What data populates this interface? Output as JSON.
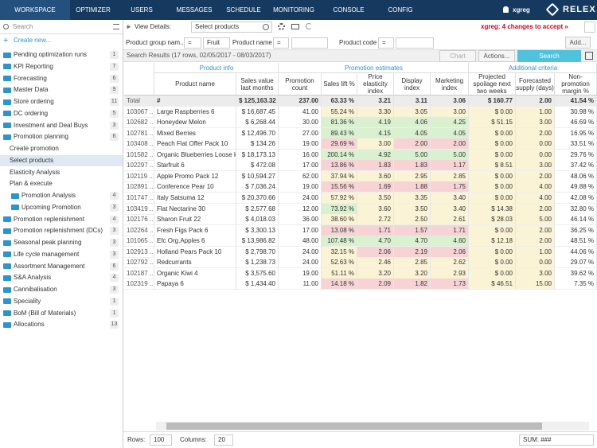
{
  "nav": {
    "tabs": [
      "WORKSPACE",
      "OPTIMIZER",
      "USERS",
      "MESSAGES",
      "SCHEDULE",
      "MONITORING",
      "CONSOLE",
      "CONFIG"
    ],
    "user": "xgreg",
    "logo": "RELEX"
  },
  "sidebar": {
    "search": "Search",
    "create": "Create new...",
    "items": [
      {
        "label": "Pending optimization runs",
        "count": "1"
      },
      {
        "label": "KPI Reporting",
        "count": "7"
      },
      {
        "label": "Forecasting",
        "count": "6"
      },
      {
        "label": "Master Data",
        "count": "9"
      },
      {
        "label": "Store ordering",
        "count": "11"
      },
      {
        "label": "DC ordering",
        "count": "5"
      },
      {
        "label": "Investment and Deal Buys",
        "count": "3"
      },
      {
        "label": "Promotion planning",
        "count": "6",
        "children": [
          {
            "label": "Create promotion"
          },
          {
            "label": "Select products",
            "selected": true
          },
          {
            "label": "Elasticity Analysis"
          },
          {
            "label": "Plan & execute",
            "children": [
              {
                "label": "Promotion Analysis",
                "count": "4"
              },
              {
                "label": "Upcoming Promotion",
                "count": "3"
              }
            ]
          }
        ]
      },
      {
        "label": "Promotion replenishment",
        "count": "4"
      },
      {
        "label": "Promotion replenishment (DCs)",
        "count": "3"
      },
      {
        "label": "Seasonal peak planning",
        "count": "3"
      },
      {
        "label": "Life cycle management",
        "count": "3"
      },
      {
        "label": "Assortment Management",
        "count": "6"
      },
      {
        "label": "S&A Analysis",
        "count": "4"
      },
      {
        "label": "Cannibalisation",
        "count": "3"
      },
      {
        "label": "Speciality",
        "count": "1"
      },
      {
        "label": "BoM (Bill of Materials)",
        "count": "1"
      },
      {
        "label": "Allocations",
        "count": "13"
      }
    ]
  },
  "toolbar": {
    "view_label": "View Details:",
    "view_value": "Select products",
    "notice": "xgreg: 4 changes to accept »"
  },
  "filters": {
    "items": [
      {
        "label": "Product group nam...",
        "op": "=",
        "value": "Fruit"
      },
      {
        "label": "Product name",
        "op": "="
      },
      {
        "label": "Product code",
        "op": "="
      }
    ],
    "add": "Add..."
  },
  "results": {
    "summary": "Search Results (17 rows, 02/05/2017 - 08/03/2017)",
    "chart": "Chart",
    "actions": "Actions...",
    "search": "Search"
  },
  "table": {
    "groups": [
      {
        "label": "Product info",
        "span": 2
      },
      {
        "label": "Promotion estimates",
        "span": 5
      },
      {
        "label": "Additional criteria",
        "span": 3
      }
    ],
    "columns": [
      "Product name",
      "Sales value last months",
      "Promotion count",
      "Sales lift %",
      "Price elasticity index",
      "Display index",
      "Marketing index",
      "Projected spoilage next two weeks",
      "Forecasted supply (days)",
      "Non-promotion margin %"
    ],
    "shade_colors": {
      "g": "#d9f1d0",
      "y": "#fbf3d6",
      "r": "#f7d3d6"
    },
    "total": {
      "id": "Total",
      "cells": [
        "#",
        "$ 125,163.32",
        "237.00",
        "63.33 %",
        "3.21",
        "3.11",
        "3.06",
        "$ 160.77",
        "2.00",
        "41.54 %"
      ]
    },
    "rows": [
      {
        "id": "103067 ...",
        "cells": [
          "Large Raspberries 6",
          "$ 16,687.45",
          "41.00",
          "55.24 %",
          "3.30",
          "3.05",
          "3.00",
          "$ 0.00",
          "1.00",
          "30.98 %"
        ],
        "shades": "yyyy"
      },
      {
        "id": "102682 ...",
        "cells": [
          "Honeydew Melon",
          "$ 6,268.44",
          "30.00",
          "81.36 %",
          "4.19",
          "4.06",
          "4.25",
          "$ 51.15",
          "3.00",
          "46.69 %"
        ],
        "shades": "gggg"
      },
      {
        "id": "102781 ...",
        "cells": [
          "Mixed Berries",
          "$ 12,496.70",
          "27.00",
          "89.43 %",
          "4.15",
          "4.05",
          "4.05",
          "$ 0.00",
          "2.00",
          "16.95 %"
        ],
        "shades": "gggg"
      },
      {
        "id": "103408 ...",
        "cells": [
          "Peach Flat Offer Pack 10",
          "$ 134.26",
          "19.00",
          "29.69 %",
          "3.00",
          "2.00",
          "2.00",
          "$ 0.00",
          "0.00",
          "33.51 %"
        ],
        "shades": "ryrr"
      },
      {
        "id": "101582 ...",
        "cells": [
          "Organic Blueberries Loose kg",
          "$ 18,173.13",
          "16.00",
          "200.14 %",
          "4.92",
          "5.00",
          "5.00",
          "$ 0.00",
          "0.00",
          "29.76 %"
        ],
        "shades": "gggg"
      },
      {
        "id": "102297 ...",
        "cells": [
          "Starfruit 6",
          "$ 472.08",
          "17.00",
          "13.86 %",
          "1.83",
          "1.83",
          "1.17",
          "$ 8.51",
          "3.00",
          "37.42 %"
        ],
        "shades": "rrrr"
      },
      {
        "id": "102119 ...",
        "cells": [
          "Apple Promo Pack 12",
          "$ 10,594.27",
          "62.00",
          "37.94 %",
          "3.60",
          "2.95",
          "2.85",
          "$ 0.00",
          "2.00",
          "48.06 %"
        ],
        "shades": "yyyy"
      },
      {
        "id": "102891 ...",
        "cells": [
          "Conference Pear 10",
          "$ 7,036.24",
          "19.00",
          "15.56 %",
          "1.69",
          "1.88",
          "1.75",
          "$ 0.00",
          "4.00",
          "49.88 %"
        ],
        "shades": "rrrr"
      },
      {
        "id": "101747 ...",
        "cells": [
          "Italy Satsuma 12",
          "$ 20,370.66",
          "24.00",
          "57.92 %",
          "3.50",
          "3.35",
          "3.40",
          "$ 0.00",
          "4.00",
          "42.08 %"
        ],
        "shades": "yyyy"
      },
      {
        "id": "103419 ...",
        "cells": [
          "Flat Nectarine 30",
          "$ 2,577.68",
          "12.00",
          "73.92 %",
          "3.60",
          "3.50",
          "3.40",
          "$ 14.38",
          "2.00",
          "32.80 %"
        ],
        "shades": "gyyy"
      },
      {
        "id": "102176 ...",
        "cells": [
          "Sharon Fruit 22",
          "$ 4,018.03",
          "36.00",
          "38.60 %",
          "2.72",
          "2.50",
          "2.61",
          "$ 28.03",
          "5.00",
          "46.14 %"
        ],
        "shades": "yyyy"
      },
      {
        "id": "102264 ...",
        "cells": [
          "Fresh Figs Pack 6",
          "$ 3,300.13",
          "17.00",
          "13.08 %",
          "1.71",
          "1.57",
          "1.71",
          "$ 0.00",
          "2.00",
          "36.25 %"
        ],
        "shades": "rrrr"
      },
      {
        "id": "101065 ...",
        "cells": [
          "Efc Org.Apples 6",
          "$ 13,986.82",
          "48.00",
          "107.48 %",
          "4.70",
          "4.70",
          "4.60",
          "$ 12.18",
          "2.00",
          "48.51 %"
        ],
        "shades": "gggg"
      },
      {
        "id": "102913 ...",
        "cells": [
          "Holland Pears Pack 10",
          "$ 2,798.70",
          "24.00",
          "32.15 %",
          "2.06",
          "2.19",
          "2.06",
          "$ 0.00",
          "1.00",
          "44.06 %"
        ],
        "shades": "yrrr"
      },
      {
        "id": "102792 ...",
        "cells": [
          "Redcurrants",
          "$ 1,238.73",
          "24.00",
          "52.63 %",
          "2.46",
          "2.85",
          "2.62",
          "$ 0.00",
          "0.00",
          "29.07 %"
        ],
        "shades": "yyyy"
      },
      {
        "id": "102187 ...",
        "cells": [
          "Organic Kiwi 4",
          "$ 3,575.60",
          "19.00",
          "51.11 %",
          "3.20",
          "3.20",
          "2.93",
          "$ 0.00",
          "3.00",
          "39.62 %"
        ],
        "shades": "yyyy"
      },
      {
        "id": "102319 ...",
        "cells": [
          "Papaya 6",
          "$ 1,434.40",
          "11.00",
          "14.18 %",
          "2.09",
          "1.82",
          "1.73",
          "$ 46.51",
          "15.00",
          "7.35 %"
        ],
        "shades": "rrrr"
      }
    ]
  },
  "footer": {
    "rows_label": "Rows:",
    "rows_value": "100",
    "columns_label": "Columns:",
    "columns_value": "20",
    "sum": "SUM: ###"
  }
}
